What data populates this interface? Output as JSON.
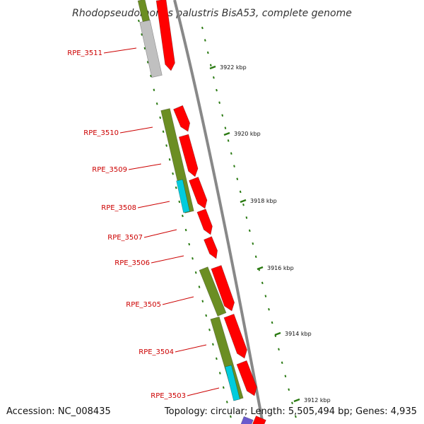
{
  "title": "Rhodopseudomonas palustris BisA53, complete genome",
  "footer": {
    "accession": "Accession: NC_008435",
    "topology": "Topology: circular; Length: 5,505,494 bp; Genes: 4,935"
  },
  "colors": {
    "forward_gene": "#ff0000",
    "reverse_gene": "#6b8e23",
    "cyan_feature": "#00ccdd",
    "gray_feature": "#c0c0c0",
    "backbone": "#888888",
    "label": "#cc0000",
    "tick": "#2a7a12"
  },
  "gene_labels": [
    {
      "id": "RPE_3511",
      "text": "RPE_3511"
    },
    {
      "id": "RPE_3510",
      "text": "RPE_3510"
    },
    {
      "id": "RPE_3509",
      "text": "RPE_3509"
    },
    {
      "id": "RPE_3508",
      "text": "RPE_3508"
    },
    {
      "id": "RPE_3507",
      "text": "RPE_3507"
    },
    {
      "id": "RPE_3506",
      "text": "RPE_3506"
    },
    {
      "id": "RPE_3505",
      "text": "RPE_3505"
    },
    {
      "id": "RPE_3504",
      "text": "RPE_3504"
    },
    {
      "id": "RPE_3503",
      "text": "RPE_3503"
    }
  ],
  "scale_ticks": [
    {
      "kbp": 3922,
      "text": "3922 kbp"
    },
    {
      "kbp": 3920,
      "text": "3920 kbp"
    },
    {
      "kbp": 3918,
      "text": "3918 kbp"
    },
    {
      "kbp": 3916,
      "text": "3916 kbp"
    },
    {
      "kbp": 3914,
      "text": "3914 kbp"
    },
    {
      "kbp": 3912,
      "text": "3912 kbp"
    }
  ]
}
